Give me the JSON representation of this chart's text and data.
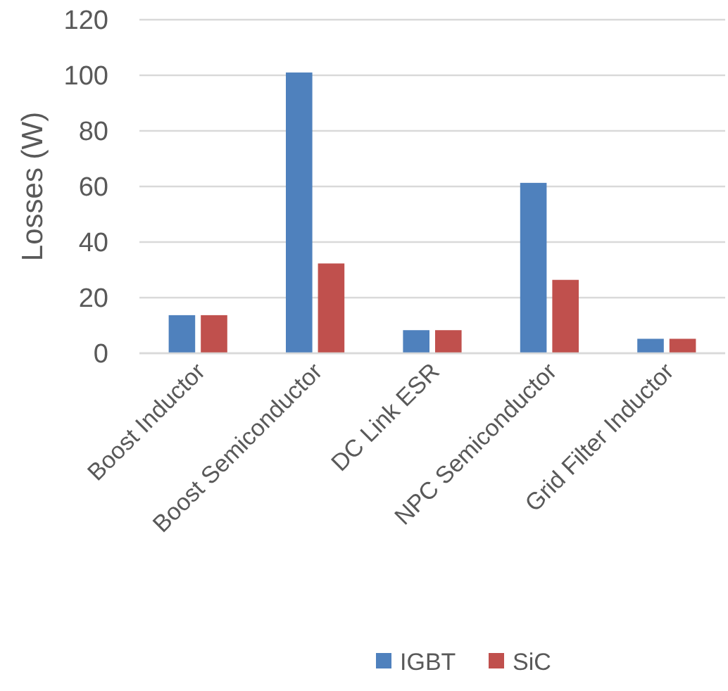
{
  "chart_data": {
    "type": "bar",
    "ylabel": "Losses (W)",
    "categories": [
      "Boost Inductor",
      "Boost Semiconductor",
      "DC Link ESR",
      "NPC Semiconductor",
      "Grid Filter Inductor"
    ],
    "series": [
      {
        "name": "IGBT",
        "color": "#4f81bd",
        "values": [
          13.7,
          101,
          8.3,
          61.3,
          5.2
        ]
      },
      {
        "name": "SiC",
        "color": "#c0504d",
        "values": [
          13.7,
          32.3,
          8.3,
          26.4,
          5.2
        ]
      }
    ],
    "ylim": [
      0,
      120
    ],
    "yticks": [
      0,
      20,
      40,
      60,
      80,
      100,
      120
    ],
    "grid": "y",
    "legend": "bottom"
  }
}
